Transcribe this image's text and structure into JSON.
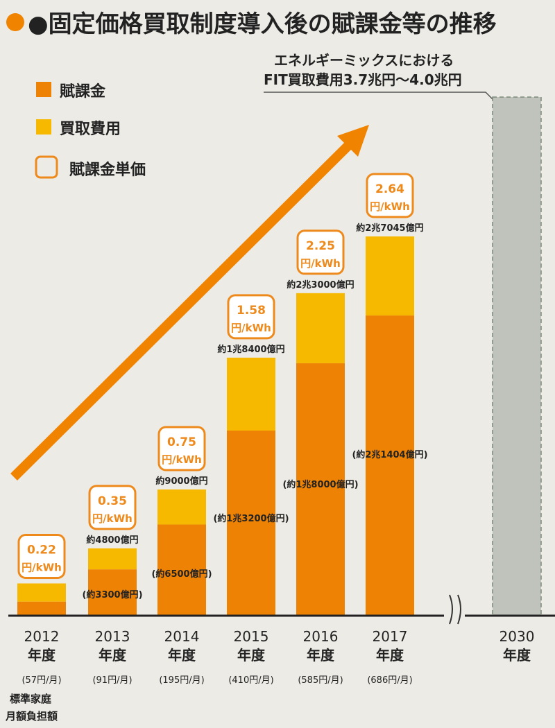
{
  "title": "●固定価格買取制度導入後の賦課金等の推移",
  "annotation_2030": [
    "エネルギーミックスにおける",
    "FIT買取費用3.7兆円〜4.0兆円"
  ],
  "note_household": [
    "標準家庭",
    "月額負担額"
  ],
  "colors": {
    "levy": "#ee8204",
    "purchase": "#f7b900",
    "unit_box": "#ee8a1c",
    "arrow": "#f08300",
    "bar_2030": "#bfc3bb",
    "background": "#ecebe6"
  },
  "chart_data": {
    "type": "bar",
    "stacked": true,
    "title": "固定価格買取制度導入後の賦課金等の推移",
    "legend": {
      "placement": "top-left",
      "entries": [
        "賦課金",
        "買取費用",
        "賦課金単価"
      ]
    },
    "categories": [
      "2012年度",
      "2013年度",
      "2014年度",
      "2015年度",
      "2016年度",
      "2017年度",
      "2030年度"
    ],
    "year_labels": [
      [
        "2012",
        "年度"
      ],
      [
        "2013",
        "年度"
      ],
      [
        "2014",
        "年度"
      ],
      [
        "2015",
        "年度"
      ],
      [
        "2016",
        "年度"
      ],
      [
        "2017",
        "年度"
      ],
      [
        "2030",
        "年度"
      ]
    ],
    "unit": "億円",
    "series": [
      {
        "name": "賦課金",
        "values": [
          1000,
          3300,
          6500,
          13200,
          18000,
          21404,
          null
        ]
      },
      {
        "name": "買取費用",
        "values": [
          2300,
          4800,
          9000,
          18400,
          23000,
          27045,
          40000
        ]
      }
    ],
    "levy_labels": [
      "",
      "(約3300億円)",
      "(約6500億円)",
      "(約1兆3200億円)",
      "(約1兆8000億円)",
      "(約2兆1404億円)",
      ""
    ],
    "total_labels": [
      "",
      "約4800億円",
      "約9000億円",
      "約1兆8400億円",
      "約2兆3000億円",
      "約2兆7045億円",
      ""
    ],
    "unit_price": [
      {
        "value": "0.22",
        "unit": "円/kWh"
      },
      {
        "value": "0.35",
        "unit": "円/kWh"
      },
      {
        "value": "0.75",
        "unit": "円/kWh"
      },
      {
        "value": "1.58",
        "unit": "円/kWh"
      },
      {
        "value": "2.25",
        "unit": "円/kWh"
      },
      {
        "value": "2.64",
        "unit": "円/kWh"
      }
    ],
    "monthly_burden": [
      "(57円/月)",
      "(91円/月)",
      "(195円/月)",
      "(410円/月)",
      "(585円/月)",
      "(686円/月)"
    ],
    "range_2030": [
      37000,
      40000
    ]
  }
}
